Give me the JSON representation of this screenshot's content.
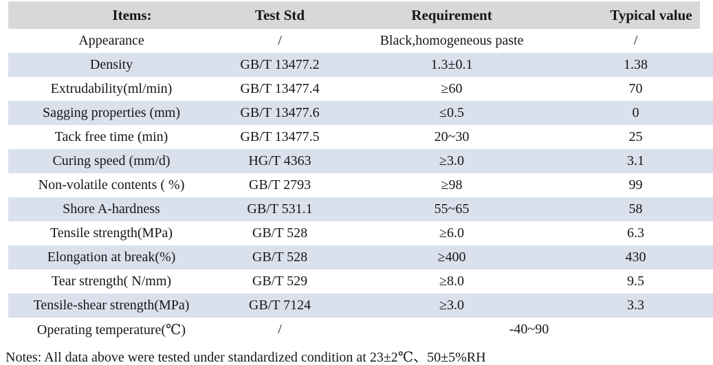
{
  "table": {
    "headers": [
      "Items:",
      "Test Std",
      "Requirement",
      "Typical value"
    ],
    "rows": [
      {
        "item": "Appearance",
        "std": "/",
        "requirement": "Black,homogeneous paste",
        "typical": "/"
      },
      {
        "item": "Density",
        "std": "GB/T 13477.2",
        "requirement": "1.3±0.1",
        "typical": "1.38"
      },
      {
        "item": "Extrudability(ml/min)",
        "std": "GB/T 13477.4",
        "requirement": "≥60",
        "typical": "70"
      },
      {
        "item": "Sagging properties (mm)",
        "std": "GB/T 13477.6",
        "requirement": "≤0.5",
        "typical": "0"
      },
      {
        "item": "Tack free time (min)",
        "std": "GB/T 13477.5",
        "requirement": "20~30",
        "typical": "25"
      },
      {
        "item": "Curing speed (mm/d)",
        "std": "HG/T 4363",
        "requirement": "≥3.0",
        "typical": "3.1"
      },
      {
        "item": "Non-volatile contents ( %)",
        "std": "GB/T 2793",
        "requirement": "≥98",
        "typical": "99"
      },
      {
        "item": "Shore A-hardness",
        "std": "GB/T 531.1",
        "requirement": "55~65",
        "typical": "58"
      },
      {
        "item": "Tensile strength(MPa)",
        "std": "GB/T 528",
        "requirement": "≥6.0",
        "typical": "6.3"
      },
      {
        "item": "Elongation at break(%)",
        "std": "GB/T 528",
        "requirement": "≥400",
        "typical": "430"
      },
      {
        "item": "Tear strength( N/mm)",
        "std": "GB/T 529",
        "requirement": "≥8.0",
        "typical": "9.5"
      },
      {
        "item": "Tensile-shear strength(MPa)",
        "std": "GB/T 7124",
        "requirement": "≥3.0",
        "typical": "3.3"
      },
      {
        "item": "Operating temperature(℃)",
        "std": "/",
        "requirement_span": "-40~90"
      }
    ],
    "notes": "Notes: All data above were tested under standardized condition at 23±2℃、50±5%RH"
  },
  "chart_data": {
    "type": "table",
    "title": "",
    "columns": [
      "Items:",
      "Test Std",
      "Requirement",
      "Typical value"
    ],
    "rows": [
      [
        "Appearance",
        "/",
        "Black,homogeneous paste",
        "/"
      ],
      [
        "Density",
        "GB/T 13477.2",
        "1.3±0.1",
        "1.38"
      ],
      [
        "Extrudability(ml/min)",
        "GB/T 13477.4",
        "≥60",
        "70"
      ],
      [
        "Sagging properties (mm)",
        "GB/T 13477.6",
        "≤0.5",
        "0"
      ],
      [
        "Tack free time (min)",
        "GB/T 13477.5",
        "20~30",
        "25"
      ],
      [
        "Curing speed (mm/d)",
        "HG/T 4363",
        "≥3.0",
        "3.1"
      ],
      [
        "Non-volatile contents ( %)",
        "GB/T 2793",
        "≥98",
        "99"
      ],
      [
        "Shore A-hardness",
        "GB/T 531.1",
        "55~65",
        "58"
      ],
      [
        "Tensile strength(MPa)",
        "GB/T 528",
        "≥6.0",
        "6.3"
      ],
      [
        "Elongation at break(%)",
        "GB/T 528",
        "≥400",
        "430"
      ],
      [
        "Tear strength( N/mm)",
        "GB/T 529",
        "≥8.0",
        "9.5"
      ],
      [
        "Tensile-shear strength(MPa)",
        "GB/T 7124",
        "≥3.0",
        "3.3"
      ],
      [
        "Operating temperature(℃)",
        "/",
        "-40~90",
        ""
      ]
    ]
  },
  "colors": {
    "header_bg": "#d8d8d8",
    "stripe_bg": "#dae1ec",
    "text": "#161616",
    "page_bg": "#ffffff"
  }
}
